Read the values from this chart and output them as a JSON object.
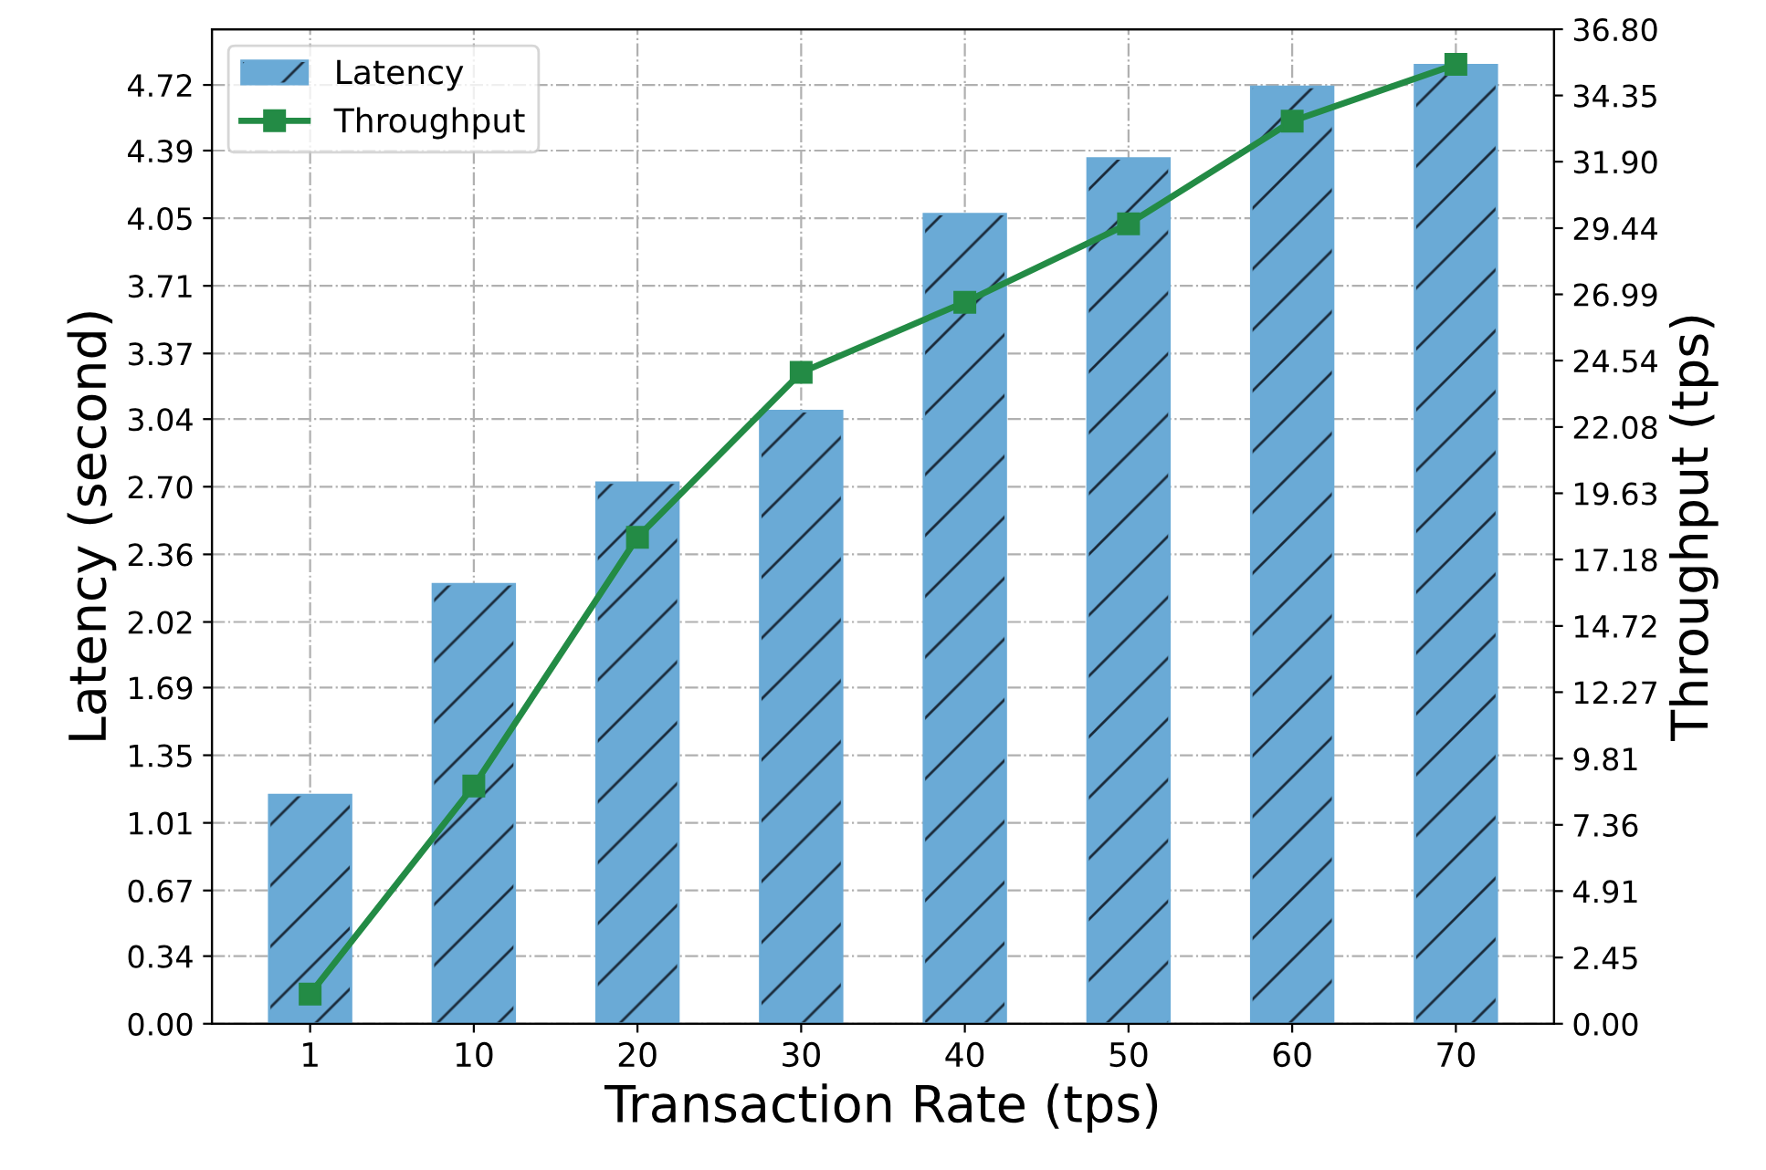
{
  "chart_data": {
    "type": "bar",
    "xlabel": "Transaction Rate (tps)",
    "ylabel": "Latency (second)",
    "y2label": "Throughput (tps)",
    "categories": [
      "1",
      "10",
      "20",
      "30",
      "40",
      "50",
      "60",
      "70"
    ],
    "series": [
      {
        "name": "Latency",
        "color": "#6aaad6",
        "values": [
          1.15,
          2.21,
          2.72,
          3.08,
          4.07,
          4.35,
          4.71,
          4.82
        ]
      },
      {
        "name": "Throughput",
        "type": "line",
        "axis": "y2",
        "color": "#238b45",
        "marker": "square",
        "line_style": "solid",
        "values": [
          1.1,
          8.8,
          18.0,
          24.1,
          26.7,
          29.6,
          33.4,
          35.5
        ]
      }
    ],
    "ylim": [
      0,
      5.0
    ],
    "yticks": [
      {
        "value": 0,
        "label": "0.00"
      },
      {
        "value": 0.34,
        "label": "0.34"
      },
      {
        "value": 0.67,
        "label": "0.67"
      },
      {
        "value": 1.01,
        "label": "1.01"
      },
      {
        "value": 1.35,
        "label": "1.35"
      },
      {
        "value": 1.69,
        "label": "1.69"
      },
      {
        "value": 2.02,
        "label": "2.02"
      },
      {
        "value": 2.36,
        "label": "2.36"
      },
      {
        "value": 2.7,
        "label": "2.70"
      },
      {
        "value": 3.04,
        "label": "3.04"
      },
      {
        "value": 3.37,
        "label": "3.37"
      },
      {
        "value": 3.71,
        "label": "3.71"
      },
      {
        "value": 4.05,
        "label": "4.05"
      },
      {
        "value": 4.39,
        "label": "4.39"
      },
      {
        "value": 4.72,
        "label": "4.72"
      }
    ],
    "y2lim": [
      0,
      36.8
    ],
    "y2ticks": [
      {
        "value": 0,
        "label": "0.00"
      },
      2.45,
      4.91,
      7.36,
      9.81,
      12.27,
      14.72,
      17.18,
      19.63,
      22.08,
      24.54,
      26.99,
      29.44,
      {
        "value": 31.9,
        "label": "31.90"
      },
      34.35,
      {
        "value": 36.8,
        "label": "36.80"
      }
    ],
    "grid": true,
    "legend": "top left"
  }
}
